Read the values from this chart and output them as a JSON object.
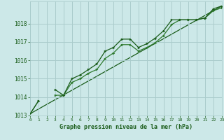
{
  "xlabel": "Graphe pression niveau de la mer (hPa)",
  "bg_color": "#cce8e8",
  "grid_color": "#aacccc",
  "line_color": "#1a5c1a",
  "line_color2": "#2e7a2e",
  "xmin": 0,
  "xmax": 23,
  "ymin": 1013,
  "ymax": 1019.2,
  "yticks": [
    1013,
    1014,
    1015,
    1016,
    1017,
    1018
  ],
  "x": [
    0,
    1,
    2,
    3,
    4,
    5,
    6,
    7,
    8,
    9,
    10,
    11,
    12,
    13,
    14,
    15,
    16,
    17,
    18,
    19,
    20,
    21,
    22,
    23
  ],
  "line1": [
    1013.1,
    1013.8,
    null,
    1014.4,
    1014.1,
    1015.0,
    1015.2,
    1015.5,
    1015.8,
    1016.5,
    1016.7,
    1017.15,
    1017.15,
    1016.7,
    1016.9,
    1017.2,
    1017.6,
    1018.2,
    1018.2,
    1018.2,
    1018.2,
    1018.3,
    1018.8,
    1018.95
  ],
  "line2": [
    1013.1,
    1013.8,
    null,
    1014.1,
    1014.1,
    1014.8,
    1015.0,
    1015.3,
    1015.5,
    1016.1,
    1016.4,
    1016.85,
    1016.85,
    1016.5,
    1016.7,
    1016.95,
    1017.35,
    1017.95,
    1018.2,
    1018.2,
    1018.2,
    1018.3,
    1018.7,
    1018.85
  ],
  "trend_x": [
    0,
    23
  ],
  "trend_y": [
    1013.1,
    1018.95
  ]
}
